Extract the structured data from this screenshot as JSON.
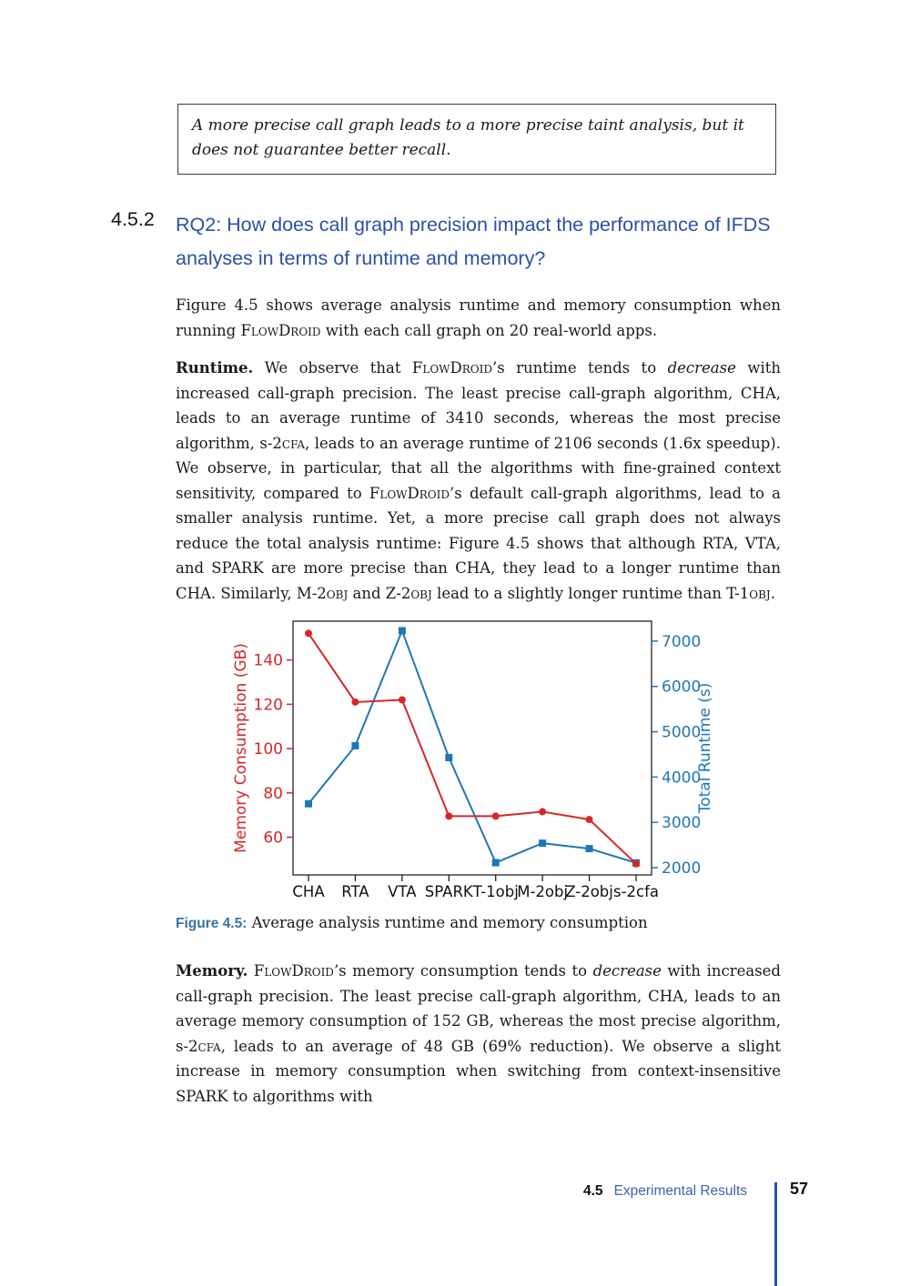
{
  "page": {
    "quote_box": {
      "text": "A more precise call graph leads to a more precise taint analysis, but it does not guarantee better recall."
    },
    "section": {
      "number": "4.5.2",
      "title": "RQ2: How does call graph precision impact the performance of IFDS analyses in terms of runtime and memory?"
    },
    "paragraphs": {
      "intro": [
        {
          "t": "Figure 4.5 shows average analysis runtime and memory consumption when running "
        },
        {
          "t": "FlowDroid",
          "s": "sc"
        },
        {
          "t": " with each call graph on 20 real-world apps."
        }
      ],
      "runtime": [
        {
          "t": "Runtime.",
          "s": "b"
        },
        {
          "t": " We observe that "
        },
        {
          "t": "FlowDroid",
          "s": "sc"
        },
        {
          "t": "’s runtime tends to "
        },
        {
          "t": "decrease",
          "s": "i"
        },
        {
          "t": " with increased call-graph precision. The least precise call-graph algorithm, CHA, leads to an average runtime of 3410 seconds, whereas the most precise algorithm, s-2"
        },
        {
          "t": "cfa",
          "s": "sc"
        },
        {
          "t": ", leads to an average runtime of 2106 seconds (1.6x speedup). We observe, in particular, that all the algorithms with fine-grained context sensitivity, compared to "
        },
        {
          "t": "FlowDroid",
          "s": "sc"
        },
        {
          "t": "’s default call-graph algorithms, lead to a smaller analysis runtime. Yet, a more precise call graph does not always reduce the total analysis runtime: Figure 4.5 shows that although RTA, VTA, and SPARK are more precise than CHA, they lead to a longer runtime than CHA. Similarly, M-2"
        },
        {
          "t": "obj",
          "s": "sc"
        },
        {
          "t": " and Z-2"
        },
        {
          "t": "obj",
          "s": "sc"
        },
        {
          "t": " lead to a slightly longer runtime than T-1"
        },
        {
          "t": "obj",
          "s": "sc"
        },
        {
          "t": "."
        }
      ],
      "memory": [
        {
          "t": "Memory.",
          "s": "b"
        },
        {
          "t": " "
        },
        {
          "t": "FlowDroid",
          "s": "sc"
        },
        {
          "t": "’s memory consumption tends to "
        },
        {
          "t": "decrease",
          "s": "i"
        },
        {
          "t": " with increased call-graph precision. The least precise call-graph algorithm, CHA, leads to an average memory consumption of 152 GB, whereas the most precise algorithm, s-2"
        },
        {
          "t": "cfa",
          "s": "sc"
        },
        {
          "t": ", leads to an average of 48 GB (69% reduction). We observe a slight increase in memory consumption when switching from context-insensitive SPARK to algorithms with"
        }
      ]
    },
    "figure": {
      "caption_label": "Figure 4.5:",
      "caption_text": " Average analysis runtime and memory consumption"
    },
    "footer": {
      "section_number": "4.5",
      "section_title": "Experimental Results",
      "page_number": "57"
    },
    "colors": {
      "heading_blue": "#2b50a9",
      "caption_blue": "#3671a9",
      "footer_title_blue": "#3c64ae",
      "footer_rule_blue": "#2b50a9",
      "body_text": "#1a1a1a",
      "chart_red": "#d62728",
      "chart_blue": "#1f77b4"
    }
  },
  "chart_data": {
    "type": "line",
    "categories": [
      "CHA",
      "RTA",
      "VTA",
      "SPARK",
      "T-1obj",
      "M-2obj",
      "Z-2obj",
      "s-2cfa"
    ],
    "series": [
      {
        "name": "Memory Consumption (GB)",
        "axis": "left",
        "color": "#d62728",
        "marker": "circle",
        "values": [
          152,
          121,
          122,
          69.5,
          69.5,
          71.5,
          68,
          48
        ]
      },
      {
        "name": "Total Runtime (s)",
        "axis": "right",
        "color": "#1f77b4",
        "marker": "square",
        "values": [
          3410,
          4690,
          7230,
          4430,
          2110,
          2540,
          2420,
          2106
        ]
      }
    ],
    "left_axis": {
      "label": "Memory Consumption (GB)",
      "ticks": [
        60,
        80,
        100,
        120,
        140
      ],
      "range": [
        43,
        157.5
      ],
      "color": "#d62728"
    },
    "right_axis": {
      "label": "Total Runtime (s)",
      "ticks": [
        2000,
        3000,
        4000,
        5000,
        6000,
        7000
      ],
      "range": [
        1840,
        7440
      ],
      "color": "#1f77b4"
    },
    "grid": false,
    "legend": "none",
    "title": ""
  }
}
